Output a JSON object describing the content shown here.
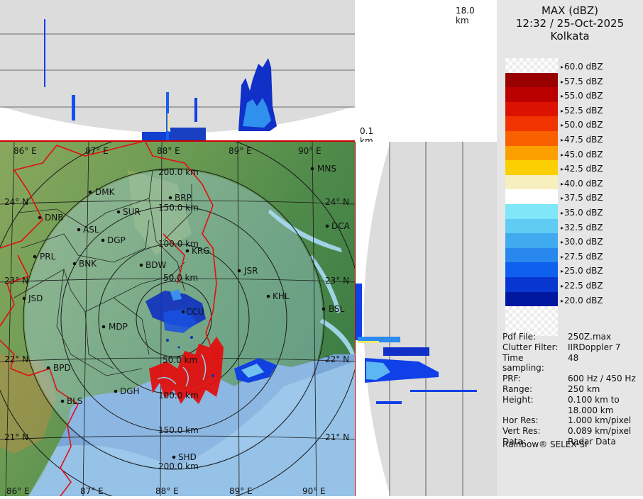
{
  "header": {
    "product": "MAX (dBZ)",
    "datetime": "12:32 / 25-Oct-2025",
    "site": "Kolkata"
  },
  "top_panel": {
    "height_max_label": "18.0 km",
    "height_min_label": "0.1 km"
  },
  "legend": {
    "items": [
      {
        "label": "60.0 dBZ",
        "color": "checker"
      },
      {
        "label": "57.5 dBZ",
        "color": "#990000"
      },
      {
        "label": "55.0 dBZ",
        "color": "#bb0000"
      },
      {
        "label": "52.5 dBZ",
        "color": "#dd1100"
      },
      {
        "label": "50.0 dBZ",
        "color": "#f03300"
      },
      {
        "label": "47.5 dBZ",
        "color": "#f86000"
      },
      {
        "label": "45.0 dBZ",
        "color": "#fca000"
      },
      {
        "label": "42.5 dBZ",
        "color": "#fcd000"
      },
      {
        "label": "40.0 dBZ",
        "color": "#f7efbe"
      },
      {
        "label": "37.5 dBZ",
        "color": "#ffffff"
      },
      {
        "label": "35.0 dBZ",
        "color": "#80e6f8"
      },
      {
        "label": "32.5 dBZ",
        "color": "#60ccf4"
      },
      {
        "label": "30.0 dBZ",
        "color": "#40aaee"
      },
      {
        "label": "27.5 dBZ",
        "color": "#2888ee"
      },
      {
        "label": "25.0 dBZ",
        "color": "#1060f0"
      },
      {
        "label": "22.5 dBZ",
        "color": "#0836d0"
      },
      {
        "label": "20.0 dBZ",
        "color": "#0018a0"
      }
    ]
  },
  "info": [
    {
      "key": "Pdf File:",
      "value": "250Z.max"
    },
    {
      "key": "Clutter Filter:",
      "value": "IIRDoppler 7"
    },
    {
      "key": "Time sampling:",
      "value": "48"
    },
    {
      "key": "PRF:",
      "value": "600 Hz / 450 Hz"
    },
    {
      "key": "Range:",
      "value": "250 km"
    },
    {
      "key": "Height:",
      "value": "0.100 km to 18.000 km"
    },
    {
      "key": "Hor Res:",
      "value": "1.000 km/pixel"
    },
    {
      "key": "Vert Res:",
      "value": "0.089 km/pixel"
    },
    {
      "key": "Data:",
      "value": "Radar Data"
    }
  ],
  "footer": "Rainbow® SELEX-SI",
  "map": {
    "lon_labels": [
      "86° E",
      "87° E",
      "88° E",
      "89° E",
      "90° E"
    ],
    "lat_labels": [
      "24° N",
      "23° N",
      "22° N",
      "21° N"
    ],
    "range_labels": [
      "50.0 km",
      "100.0 km",
      "150.0 km",
      "200.0 km"
    ],
    "range_labels_south": [
      "50.0 km",
      "100.0 km",
      "150.0 km",
      "200.0 km"
    ],
    "cities": [
      "DMK",
      "BRP",
      "MNS",
      "DNB",
      "SUR",
      "ASL",
      "DGP",
      "DCA",
      "KRG",
      "PRL",
      "BNK",
      "BDW",
      "JSR",
      "KHL",
      "JSD",
      "CCU",
      "BSL",
      "MDP",
      "BPD",
      "DGH",
      "BLS",
      "SHD"
    ]
  }
}
